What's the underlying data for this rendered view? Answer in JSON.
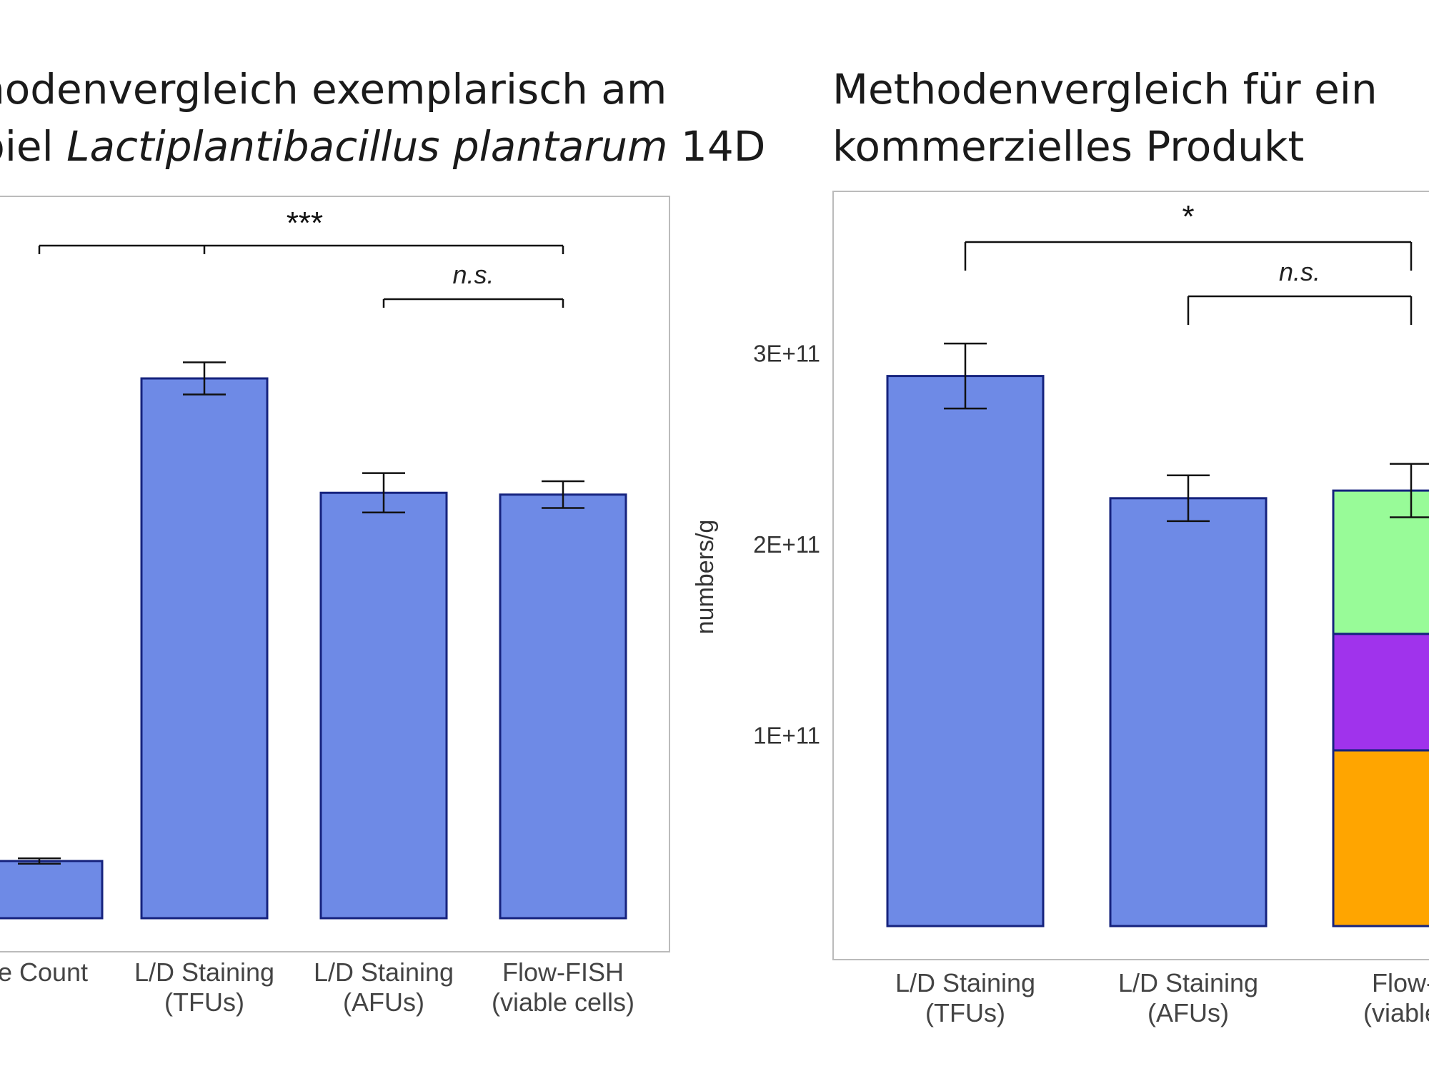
{
  "titles": {
    "left_line1": "hodenvergleich exemplarisch am",
    "left_line2_prefix": "piel ",
    "left_line2_italic": "Lactiplantibacillus plantarum",
    "left_line2_suffix": " 14D",
    "right_line1": "Methodenvergleich für ein",
    "right_line2": "kommerzielles Produkt"
  },
  "colors": {
    "bar_fill": "#6E8AE6",
    "bar_stroke": "#16237E",
    "stack_green": "#98FB98",
    "stack_purple": "#A033EC",
    "stack_orange": "#FFA500",
    "frame": "#BBBBBB"
  },
  "chart_data": [
    {
      "type": "bar",
      "categories": [
        "te Count",
        "L/D Staining\n(TFUs)",
        "L/D Staining\n(AFUs)",
        "Flow-FISH\n(viable cells)"
      ],
      "values": [
        32000000000.0,
        302000000000.0,
        238000000000.0,
        237000000000.0
      ],
      "errors": [
        1500000000.0,
        9000000000.0,
        11000000000.0,
        7500000000.0
      ],
      "ylim": [
        0,
        380000000000.0
      ],
      "grid": false,
      "significance": [
        {
          "label": "***",
          "from": 0,
          "to": 3,
          "extra_tick": 1,
          "italic": false
        },
        {
          "label": "n.s.",
          "from": 2,
          "to": 3,
          "italic": true
        }
      ]
    },
    {
      "type": "bar",
      "categories": [
        "L/D Staining\n(TFUs)",
        "L/D Staining\n(AFUs)",
        "Flow-F\n(viable c"
      ],
      "values": [
        288000000000.0,
        224000000000.0,
        228000000000.0
      ],
      "errors": [
        17000000000.0,
        12000000000.0,
        14000000000.0
      ],
      "stack": {
        "index": 2,
        "segments": [
          {
            "color": "#FFA500",
            "value": 92000000000.0
          },
          {
            "color": "#A033EC",
            "value": 61000000000.0
          },
          {
            "color": "#98FB98",
            "value": 75000000000.0
          }
        ]
      },
      "ylabel": "numbers/g",
      "yticks": [
        100000000000.0,
        200000000000.0,
        300000000000.0
      ],
      "ytick_labels": [
        "1E+11",
        "2E+11",
        "3E+11"
      ],
      "ylim": [
        0,
        385000000000.0
      ],
      "grid": false,
      "significance": [
        {
          "label": "*",
          "from": 0,
          "to": 2,
          "italic": false
        },
        {
          "label": "n.s.",
          "from": 1,
          "to": 2,
          "italic": true
        }
      ]
    }
  ]
}
